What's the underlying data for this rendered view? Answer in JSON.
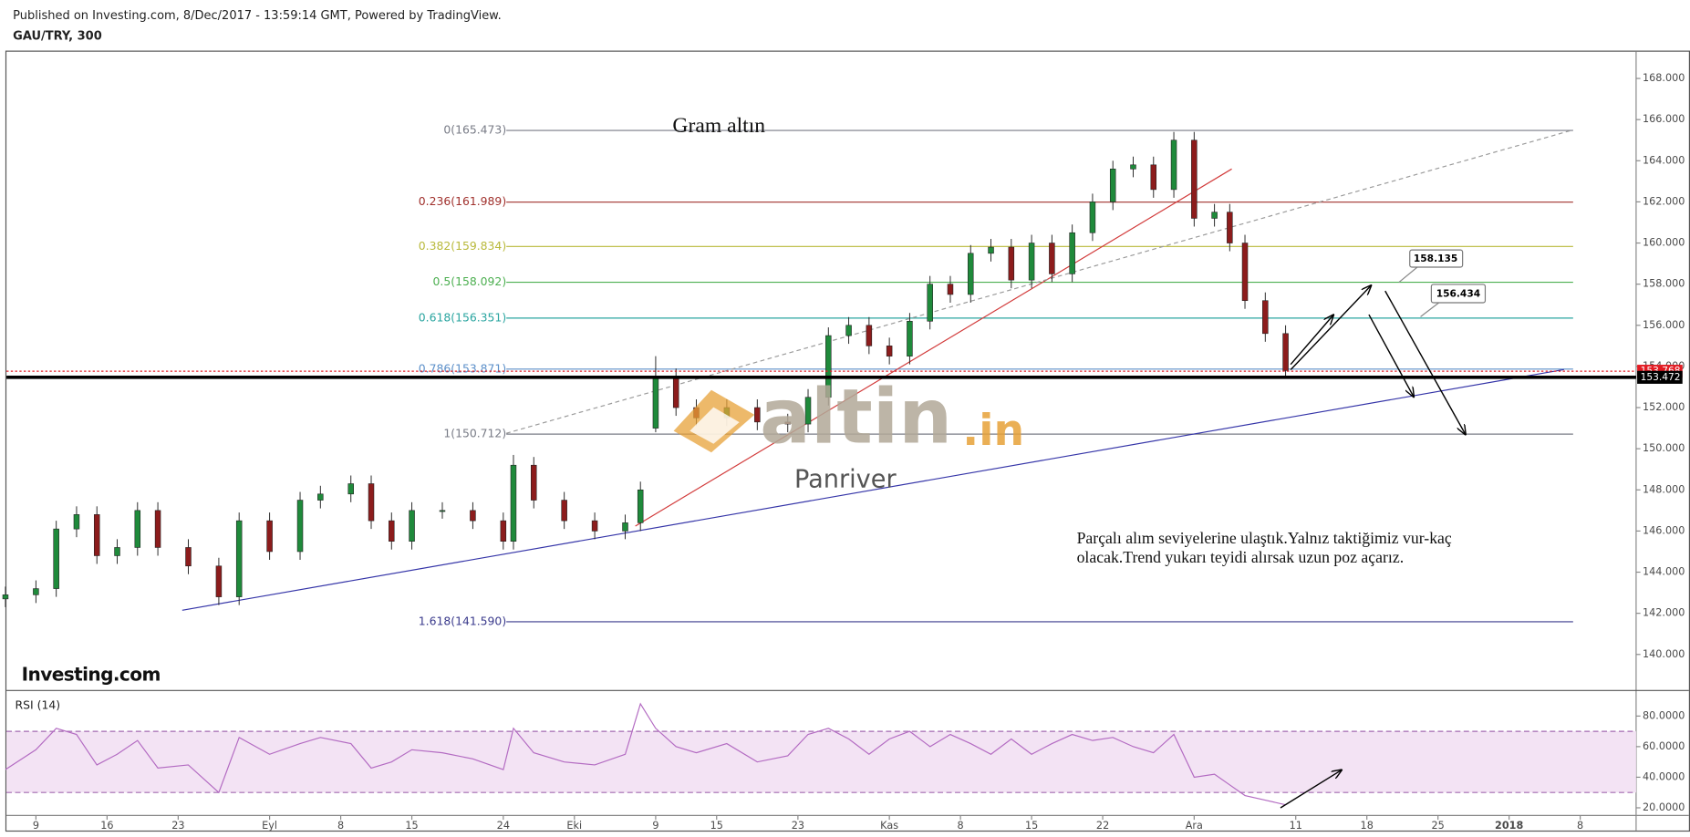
{
  "header": {
    "published": "Published on Investing.com, 8/Dec/2017 - 13:59:14 GMT, Powered by TradingView.",
    "symbol": "GAU/TRY, 300"
  },
  "logo": "Investing.com",
  "watermark": [
    "altin",
    ".in"
  ],
  "callouts": [
    158.135,
    156.434
  ],
  "chart_data": [
    {
      "type": "candlestick",
      "annotations": [
        "Gram altın",
        "Panriver",
        "Parçalı alım seviyelerine ulaştık.Yalnız taktiğimiz vur-kaç",
        "olacak.Trend yukarı teyidi alırsak uzun poz açarız."
      ],
      "x": [
        6,
        9,
        11,
        13,
        15,
        17,
        19,
        21,
        24,
        27,
        29,
        32,
        35,
        37,
        40,
        42,
        44,
        46,
        49,
        52,
        55,
        56,
        58,
        61,
        64,
        67,
        68.5,
        70,
        72,
        74,
        77,
        80,
        83,
        85,
        87,
        89,
        91,
        93,
        95,
        97,
        99,
        101,
        103,
        105,
        107,
        109,
        111,
        113,
        115,
        117,
        119,
        121,
        123,
        125,
        126.5,
        128,
        130,
        132
      ],
      "open": [
        142.7,
        142.9,
        143.2,
        146.1,
        146.8,
        144.8,
        145.2,
        147.0,
        145.2,
        144.3,
        142.8,
        146.5,
        145.0,
        147.5,
        147.8,
        148.3,
        146.5,
        145.5,
        147.0,
        147.0,
        146.5,
        145.5,
        149.2,
        147.5,
        146.5,
        146.0,
        146.4,
        151.0,
        153.5,
        152.0,
        151.5,
        152.0,
        151.3,
        151.2,
        152.5,
        155.5,
        156.0,
        155.0,
        154.5,
        156.2,
        158.0,
        157.5,
        159.5,
        159.8,
        158.2,
        160.0,
        158.5,
        160.5,
        162.0,
        163.6,
        163.8,
        162.6,
        165.0,
        161.2,
        161.5,
        160.0,
        157.2,
        155.6
      ],
      "high": [
        143.3,
        143.6,
        146.5,
        147.2,
        147.2,
        145.6,
        147.4,
        147.4,
        145.6,
        144.7,
        146.9,
        146.9,
        147.9,
        148.2,
        148.7,
        148.7,
        146.9,
        147.4,
        147.4,
        147.4,
        146.9,
        149.7,
        149.6,
        147.9,
        146.9,
        146.8,
        148.4,
        154.5,
        153.9,
        152.4,
        152.4,
        152.4,
        151.7,
        152.9,
        155.9,
        156.4,
        156.4,
        155.4,
        156.6,
        158.4,
        158.4,
        159.9,
        160.2,
        160.2,
        160.4,
        160.4,
        160.9,
        162.4,
        164.0,
        164.2,
        164.2,
        165.4,
        165.4,
        161.9,
        161.9,
        160.4,
        157.6,
        156.0
      ],
      "low": [
        142.3,
        142.5,
        142.8,
        145.7,
        144.4,
        144.4,
        144.8,
        144.8,
        143.9,
        142.4,
        142.4,
        144.6,
        144.6,
        147.1,
        147.4,
        146.1,
        145.1,
        145.1,
        146.6,
        146.1,
        145.1,
        145.1,
        147.1,
        146.1,
        145.6,
        145.6,
        146.0,
        150.8,
        151.6,
        151.1,
        151.1,
        150.9,
        150.8,
        150.8,
        152.1,
        155.1,
        154.6,
        154.1,
        154.1,
        155.8,
        157.1,
        157.1,
        159.1,
        157.8,
        157.8,
        158.1,
        158.1,
        160.1,
        161.6,
        163.2,
        162.2,
        162.2,
        160.8,
        160.8,
        159.6,
        156.8,
        155.2,
        153.4
      ],
      "close": [
        142.9,
        143.2,
        146.1,
        146.8,
        144.8,
        145.2,
        147.0,
        145.2,
        144.3,
        142.8,
        146.5,
        145.0,
        147.5,
        147.8,
        148.3,
        146.5,
        145.5,
        147.0,
        147.0,
        146.5,
        145.5,
        149.2,
        147.5,
        146.5,
        146.0,
        146.4,
        148.0,
        153.5,
        152.0,
        151.5,
        152.0,
        151.3,
        151.2,
        152.5,
        155.5,
        156.0,
        155.0,
        154.5,
        156.2,
        158.0,
        157.5,
        159.5,
        159.8,
        158.2,
        160.0,
        158.5,
        160.5,
        162.0,
        163.6,
        163.8,
        162.6,
        165.0,
        161.2,
        161.5,
        160.0,
        157.2,
        155.6,
        153.8
      ],
      "up_color": "#1f8a3b",
      "down_color": "#8c1c1c",
      "xlim": [
        6.1,
        166.5
      ],
      "ylim": [
        138.3,
        169.3
      ],
      "yticks": [
        {
          "value": 140,
          "label": "140.000"
        },
        {
          "value": 142,
          "label": "142.000"
        },
        {
          "value": 144,
          "label": "144.000"
        },
        {
          "value": 146,
          "label": "146.000"
        },
        {
          "value": 148,
          "label": "148.000"
        },
        {
          "value": 150,
          "label": "150.000"
        },
        {
          "value": 152,
          "label": "152.000"
        },
        {
          "value": 154,
          "label": "154.000"
        },
        {
          "value": 156,
          "label": "156.000"
        },
        {
          "value": 158,
          "label": "158.000"
        },
        {
          "value": 160,
          "label": "160.000"
        },
        {
          "value": 162,
          "label": "162.000"
        },
        {
          "value": 164,
          "label": "164.000"
        },
        {
          "value": 166,
          "label": "166.000"
        },
        {
          "value": 168,
          "label": "168.000"
        }
      ],
      "grid": false,
      "fib_range": [
        55.3,
        160.3
      ],
      "fib_levels": [
        {
          "label": "0(165.473)",
          "value": 165.473,
          "color": "#787b86"
        },
        {
          "label": "0.236(161.989)",
          "value": 161.989,
          "color": "#a0302c"
        },
        {
          "label": "0.382(159.834)",
          "value": 159.834,
          "color": "#b9b93a"
        },
        {
          "label": "0.5(158.092)",
          "value": 158.092,
          "color": "#4caf50"
        },
        {
          "label": "0.618(156.351)",
          "value": 156.351,
          "color": "#2aa5a0"
        },
        {
          "label": "0.786(153.871)",
          "value": 153.871,
          "color": "#5b8fc9"
        },
        {
          "label": "1(150.712)",
          "value": 150.712,
          "color": "#787b86"
        },
        {
          "label": "1.618(141.590)",
          "value": 141.59,
          "color": "#3a3a8c"
        }
      ],
      "price_lines": [
        {
          "value": 153.768,
          "color": "#e31b23"
        },
        {
          "value": 153.472,
          "color": "#000000"
        }
      ],
      "trend_lines": [
        {
          "x": [
            23.4,
            159.4
          ],
          "y": [
            142.15,
            153.85
          ],
          "color": "#3535a8",
          "dash": false
        },
        {
          "x": [
            68,
            126.7
          ],
          "y": [
            146.24,
            163.6
          ],
          "color": "#d23b3b",
          "dash": false
        },
        {
          "x": [
            55.3,
            160.3
          ],
          "y": [
            150.75,
            165.5
          ],
          "color": "#9a9a9a",
          "dash": true
        }
      ],
      "arrows": [
        {
          "x": [
            132.5,
            136.7
          ],
          "y": [
            154.1,
            156.5
          ]
        },
        {
          "x": [
            132.5,
            140.4
          ],
          "y": [
            153.84,
            157.93
          ]
        },
        {
          "x": [
            140.2,
            144.6
          ],
          "y": [
            156.52,
            152.53
          ]
        },
        {
          "x": [
            141.8,
            149.7
          ],
          "y": [
            157.67,
            150.7
          ]
        }
      ]
    },
    {
      "type": "line",
      "title": "RSI (14)",
      "x": [
        6,
        9,
        11,
        13,
        15,
        17,
        19,
        21,
        24,
        27,
        29,
        32,
        35,
        37,
        40,
        42,
        44,
        46,
        49,
        52,
        55,
        56,
        58,
        61,
        64,
        67,
        68.5,
        70,
        72,
        74,
        77,
        80,
        83,
        85,
        87,
        89,
        91,
        93,
        95,
        97,
        99,
        101,
        103,
        105,
        107,
        109,
        111,
        113,
        115,
        117,
        119,
        121,
        123,
        125,
        126.5,
        128,
        130,
        132
      ],
      "values": [
        45,
        58,
        72,
        68,
        48,
        55,
        64,
        46,
        48,
        30,
        66,
        55,
        62,
        66,
        62,
        46,
        50,
        58,
        56,
        52,
        45,
        72,
        56,
        50,
        48,
        55,
        88,
        72,
        60,
        56,
        62,
        50,
        54,
        68,
        72,
        65,
        55,
        65,
        70,
        60,
        68,
        62,
        55,
        65,
        55,
        62,
        68,
        64,
        66,
        60,
        56,
        68,
        40,
        42,
        35,
        28,
        25,
        22
      ],
      "color": "#b36bc2",
      "bands": [
        30,
        70
      ],
      "band_color": "#f3e3f4",
      "xlim": [
        6.1,
        166.5
      ],
      "ylim": [
        15,
        96
      ],
      "yticks": [
        {
          "value": 20,
          "label": "20.0000"
        },
        {
          "value": 40,
          "label": "40.0000"
        },
        {
          "value": 60,
          "label": "60.0000"
        },
        {
          "value": 80,
          "label": "80.0000"
        }
      ],
      "xticks": [
        9,
        16,
        23,
        {
          "value": 32,
          "label": "Eyl"
        },
        {
          "value": 39,
          "label": "8"
        },
        {
          "value": 46,
          "label": "15"
        },
        {
          "value": 55,
          "label": "24"
        },
        {
          "value": 62,
          "label": "Eki"
        },
        {
          "value": 70,
          "label": "9"
        },
        {
          "value": 76,
          "label": "15"
        },
        {
          "value": 84,
          "label": "23"
        },
        {
          "value": 93,
          "label": "Kas"
        },
        {
          "value": 100,
          "label": "8"
        },
        {
          "value": 107,
          "label": "15"
        },
        {
          "value": 114,
          "label": "22"
        },
        {
          "value": 123,
          "label": "Ara"
        },
        {
          "value": 133,
          "label": "11"
        },
        {
          "value": 140,
          "label": "18"
        },
        {
          "value": 147,
          "label": "25"
        },
        {
          "value": 154,
          "label": "2018"
        },
        {
          "value": 161,
          "label": "8"
        }
      ],
      "arrows": [
        {
          "x": [
            131.5,
            137.5
          ],
          "y": [
            20,
            44.7
          ]
        }
      ]
    }
  ]
}
